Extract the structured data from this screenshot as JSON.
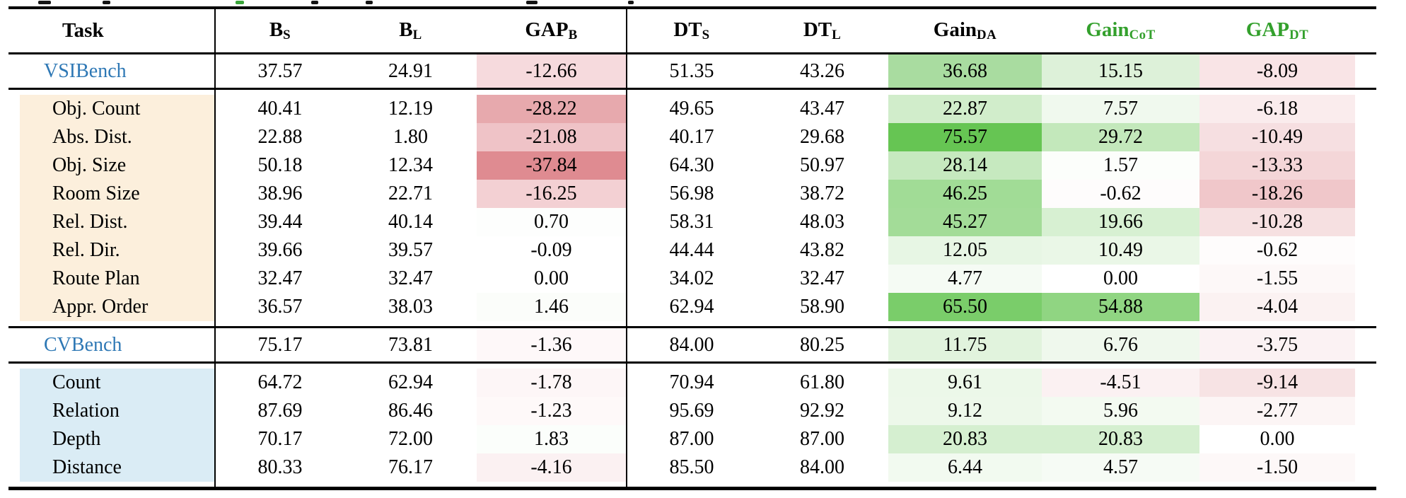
{
  "colors": {
    "benchmark_label": "#2e78b5",
    "green_header": "#33a02c",
    "vsibench_task_bg": "#fcefdc",
    "cvbench_task_bg": "#daecf5",
    "strong_gain_green": "#66c553",
    "strong_gap_pink": "#df8b91"
  },
  "table": {
    "header": {
      "columns": [
        {
          "base": "Task",
          "sub": "",
          "color": "#000000"
        },
        {
          "base": "B",
          "sub": "S",
          "color": "#000000"
        },
        {
          "base": "B",
          "sub": "L",
          "color": "#000000"
        },
        {
          "base": "GAP",
          "sub": "B",
          "color": "#000000"
        },
        {
          "base": "DT",
          "sub": "S",
          "color": "#000000"
        },
        {
          "base": "DT",
          "sub": "L",
          "color": "#000000"
        },
        {
          "base": "Gain",
          "sub": "DA",
          "color": "#000000"
        },
        {
          "base": "Gain",
          "sub": "CoT",
          "color": "#33a02c"
        },
        {
          "base": "GAP",
          "sub": "DT",
          "color": "#33a02c"
        }
      ]
    },
    "sections": [
      {
        "type": "summary",
        "row": {
          "label": "VSIBench",
          "label_color": "#2e78b5",
          "values": [
            "37.57",
            "24.91",
            "-12.66",
            "51.35",
            "43.26",
            "36.68",
            "15.15",
            "-8.09"
          ],
          "bg": [
            null,
            null,
            "#f6dadd",
            null,
            null,
            "#a9dca0",
            "#ddf1d9",
            "#f9e4e6"
          ]
        }
      },
      {
        "type": "subrows",
        "task_bg": "#fcefdc",
        "rows": [
          {
            "label": "Obj. Count",
            "values": [
              "40.41",
              "12.19",
              "-28.22",
              "49.65",
              "43.47",
              "22.87",
              "7.57",
              "-6.18"
            ],
            "bg": [
              null,
              null,
              "#e7a9ad",
              null,
              null,
              "#d1edcb",
              "#f0f9ee",
              "#faeced"
            ]
          },
          {
            "label": "Abs. Dist.",
            "values": [
              "22.88",
              "1.80",
              "-21.08",
              "40.17",
              "29.68",
              "75.57",
              "29.72",
              "-10.49"
            ],
            "bg": [
              null,
              null,
              "#efc3c7",
              null,
              null,
              "#66c553",
              "#c3e8bb",
              "#f6dfe1"
            ]
          },
          {
            "label": "Obj. Size",
            "values": [
              "50.18",
              "12.34",
              "-37.84",
              "64.30",
              "50.97",
              "28.14",
              "1.57",
              "-13.33"
            ],
            "bg": [
              null,
              null,
              "#df8b91",
              null,
              null,
              "#c6e9bf",
              "#fcfefb",
              "#f4d6d8"
            ]
          },
          {
            "label": "Room Size",
            "values": [
              "38.96",
              "22.71",
              "-16.25",
              "56.98",
              "38.72",
              "46.25",
              "-0.62",
              "-18.26"
            ],
            "bg": [
              null,
              null,
              "#f3d0d3",
              null,
              null,
              "#a1dc96",
              "#fefcfc",
              "#f0c7ca"
            ]
          },
          {
            "label": "Rel. Dist.",
            "values": [
              "39.44",
              "40.14",
              "0.70",
              "58.31",
              "48.03",
              "45.27",
              "19.66",
              "-10.28"
            ],
            "bg": [
              null,
              null,
              "#fdfefd",
              null,
              null,
              "#a3dc98",
              "#d7f0d2",
              "#f6e0e1"
            ]
          },
          {
            "label": "Rel. Dir.",
            "values": [
              "39.66",
              "39.57",
              "-0.09",
              "44.44",
              "43.82",
              "12.05",
              "10.49",
              "-0.62"
            ],
            "bg": [
              null,
              null,
              null,
              null,
              null,
              "#e7f6e4",
              "#eaf7e7",
              "#fefcfc"
            ]
          },
          {
            "label": "Route Plan",
            "values": [
              "32.47",
              "32.47",
              "0.00",
              "34.02",
              "32.47",
              "4.77",
              "0.00",
              "-1.55"
            ],
            "bg": [
              null,
              null,
              null,
              null,
              null,
              "#f5fbf4",
              null,
              "#fdf8f8"
            ]
          },
          {
            "label": "Appr. Order",
            "values": [
              "36.57",
              "38.03",
              "1.46",
              "62.94",
              "58.90",
              "65.50",
              "54.88",
              "-4.04"
            ],
            "bg": [
              null,
              null,
              "#fbfdfa",
              null,
              null,
              "#7acd6a",
              "#90d582",
              "#fbf2f2"
            ]
          }
        ]
      },
      {
        "type": "summary",
        "row": {
          "label": "CVBench",
          "label_color": "#2e78b5",
          "values": [
            "75.17",
            "73.81",
            "-1.36",
            "84.00",
            "80.25",
            "11.75",
            "6.76",
            "-3.75"
          ],
          "bg": [
            null,
            null,
            "#fef8f9",
            null,
            null,
            "#e1f3dd",
            "#eff8ed",
            "#fbf2f3"
          ]
        }
      },
      {
        "type": "subrows",
        "task_bg": "#daecf5",
        "rows": [
          {
            "label": "Count",
            "values": [
              "64.72",
              "62.94",
              "-1.78",
              "70.94",
              "61.80",
              "9.61",
              "-4.51",
              "-9.14"
            ],
            "bg": [
              null,
              null,
              "#fdf6f7",
              null,
              null,
              "#ecf8e9",
              "#fbf1f2",
              "#f7e3e4"
            ]
          },
          {
            "label": "Relation",
            "values": [
              "87.69",
              "86.46",
              "-1.23",
              "95.69",
              "92.92",
              "9.12",
              "5.96",
              "-2.77"
            ],
            "bg": [
              null,
              null,
              "#fef9f9",
              null,
              null,
              "#edf8ea",
              "#f3faf1",
              "#fcf5f5"
            ]
          },
          {
            "label": "Depth",
            "values": [
              "70.17",
              "72.00",
              "1.83",
              "87.00",
              "87.00",
              "20.83",
              "20.83",
              "0.00"
            ],
            "bg": [
              null,
              null,
              "#fbfefb",
              null,
              null,
              "#d5efd0",
              "#d5efd0",
              null
            ]
          },
          {
            "label": "Distance",
            "values": [
              "80.33",
              "76.17",
              "-4.16",
              "85.50",
              "84.00",
              "6.44",
              "4.57",
              "-1.50"
            ],
            "bg": [
              null,
              null,
              "#fbf1f2",
              null,
              null,
              "#f2faf0",
              "#f6fbf5",
              "#fdf8f8"
            ]
          }
        ]
      }
    ]
  },
  "chart_data": {
    "type": "table",
    "columns": [
      "Task",
      "B_S",
      "B_L",
      "GAP_B",
      "DT_S",
      "DT_L",
      "Gain_DA",
      "Gain_CoT",
      "GAP_DT"
    ],
    "rows": [
      [
        "VSIBench",
        37.57,
        24.91,
        -12.66,
        51.35,
        43.26,
        36.68,
        15.15,
        -8.09
      ],
      [
        "Obj. Count",
        40.41,
        12.19,
        -28.22,
        49.65,
        43.47,
        22.87,
        7.57,
        -6.18
      ],
      [
        "Abs. Dist.",
        22.88,
        1.8,
        -21.08,
        40.17,
        29.68,
        75.57,
        29.72,
        -10.49
      ],
      [
        "Obj. Size",
        50.18,
        12.34,
        -37.84,
        64.3,
        50.97,
        28.14,
        1.57,
        -13.33
      ],
      [
        "Room Size",
        38.96,
        22.71,
        -16.25,
        56.98,
        38.72,
        46.25,
        -0.62,
        -18.26
      ],
      [
        "Rel. Dist.",
        39.44,
        40.14,
        0.7,
        58.31,
        48.03,
        45.27,
        19.66,
        -10.28
      ],
      [
        "Rel. Dir.",
        39.66,
        39.57,
        -0.09,
        44.44,
        43.82,
        12.05,
        10.49,
        -0.62
      ],
      [
        "Route Plan",
        32.47,
        32.47,
        0.0,
        34.02,
        32.47,
        4.77,
        0.0,
        -1.55
      ],
      [
        "Appr. Order",
        36.57,
        38.03,
        1.46,
        62.94,
        58.9,
        65.5,
        54.88,
        -4.04
      ],
      [
        "CVBench",
        75.17,
        73.81,
        -1.36,
        84.0,
        80.25,
        11.75,
        6.76,
        -3.75
      ],
      [
        "Count",
        64.72,
        62.94,
        -1.78,
        70.94,
        61.8,
        9.61,
        -4.51,
        -9.14
      ],
      [
        "Relation",
        87.69,
        86.46,
        -1.23,
        95.69,
        92.92,
        9.12,
        5.96,
        -2.77
      ],
      [
        "Depth",
        70.17,
        72.0,
        1.83,
        87.0,
        87.0,
        20.83,
        20.83,
        0.0
      ],
      [
        "Distance",
        80.33,
        76.17,
        -4.16,
        85.5,
        84.0,
        6.44,
        4.57,
        -1.5
      ]
    ]
  }
}
